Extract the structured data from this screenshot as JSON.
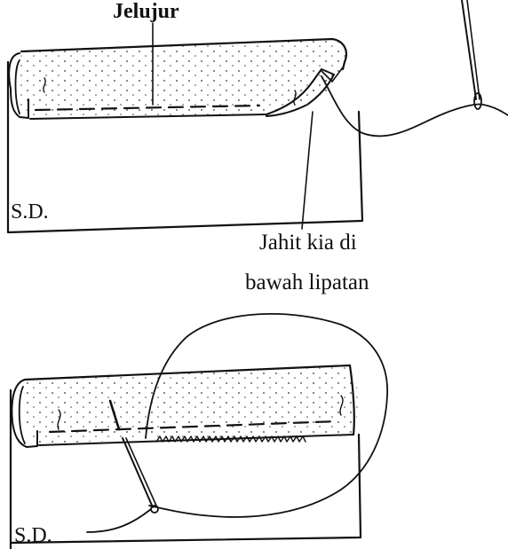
{
  "diagram_top": {
    "label_title": "Jelujur",
    "label_panel": "S.D.",
    "label_note_line1": "Jahit kia di",
    "label_note_line2": "bawah lipatan"
  },
  "diagram_bottom": {
    "label_panel": "S.D."
  },
  "colors": {
    "ink": "#111111",
    "paper": "#ffffff"
  }
}
